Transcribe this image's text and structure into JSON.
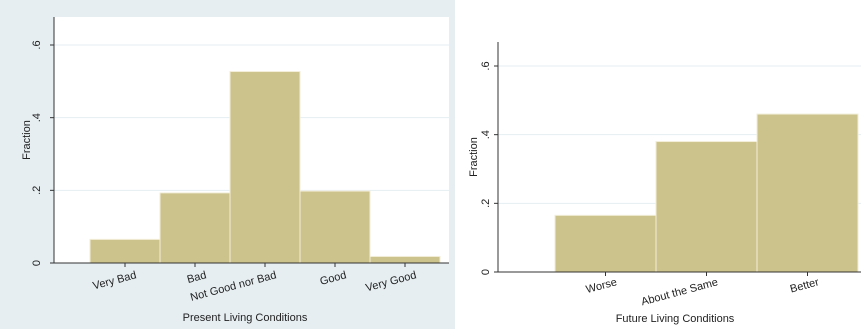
{
  "chart_data": [
    {
      "type": "bar",
      "xlabel": "Present Living Conditions",
      "ylabel": "Fraction",
      "categories": [
        "Very Bad",
        "Bad",
        "Not Good nor Bad",
        "Good",
        "Very Good"
      ],
      "values": [
        0.065,
        0.193,
        0.527,
        0.198,
        0.018
      ],
      "yticks": [
        ".6",
        ".4",
        ".2",
        "0"
      ],
      "ytick_values": [
        0.6,
        0.4,
        0.2,
        0
      ],
      "ylim": [
        0,
        0.6
      ],
      "grid": true,
      "colors": {
        "bar": "#ccc28b",
        "bar_edge": "#f2eed9",
        "outer_bg": "#e6eef2",
        "plot_bg": "#ffffff",
        "grid": "#e6eef2"
      }
    },
    {
      "type": "bar",
      "xlabel": "Future Living Conditions",
      "ylabel": "Fraction",
      "categories": [
        "Worse",
        "About the Same",
        "Better"
      ],
      "values": [
        0.165,
        0.38,
        0.46
      ],
      "yticks": [
        ".6",
        ".4",
        ".2",
        "0"
      ],
      "ytick_values": [
        0.6,
        0.4,
        0.2,
        0
      ],
      "ylim": [
        0,
        0.6
      ],
      "grid": true,
      "colors": {
        "bar": "#ccc28b",
        "bar_edge": "#f2eed9",
        "outer_bg": "#ffffff",
        "plot_bg": "#ffffff",
        "grid": "#e6eef2"
      }
    }
  ]
}
